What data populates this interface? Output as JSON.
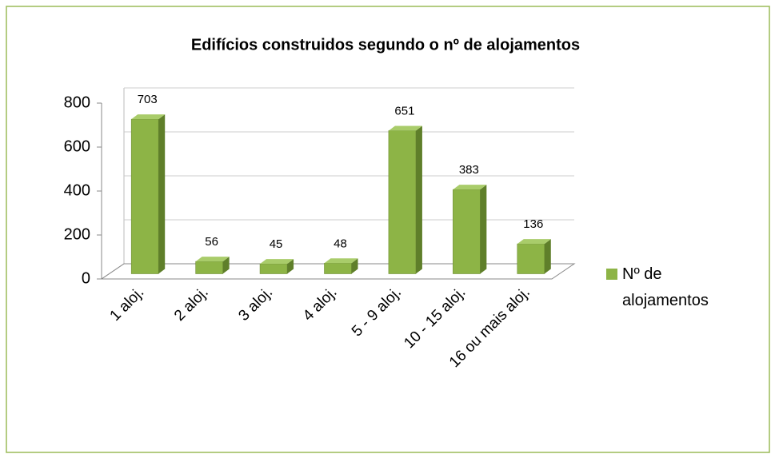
{
  "chart_data": {
    "type": "bar3d",
    "title": "Edifícios construidos segundo o nº de alojamentos",
    "categories": [
      "1 aloj.",
      "2 aloj.",
      "3 aloj.",
      "4 aloj.",
      "5 - 9 aloj.",
      "10 - 15 aloj.",
      "16 ou mais aloj."
    ],
    "series": [
      {
        "name": "Nº de alojamentos",
        "color": "#8db446",
        "values": [
          703,
          56,
          45,
          48,
          651,
          383,
          136
        ]
      }
    ],
    "ylim": [
      0,
      800
    ],
    "yticks": [
      0,
      200,
      400,
      600,
      800
    ],
    "grid": true,
    "legend": "right"
  }
}
